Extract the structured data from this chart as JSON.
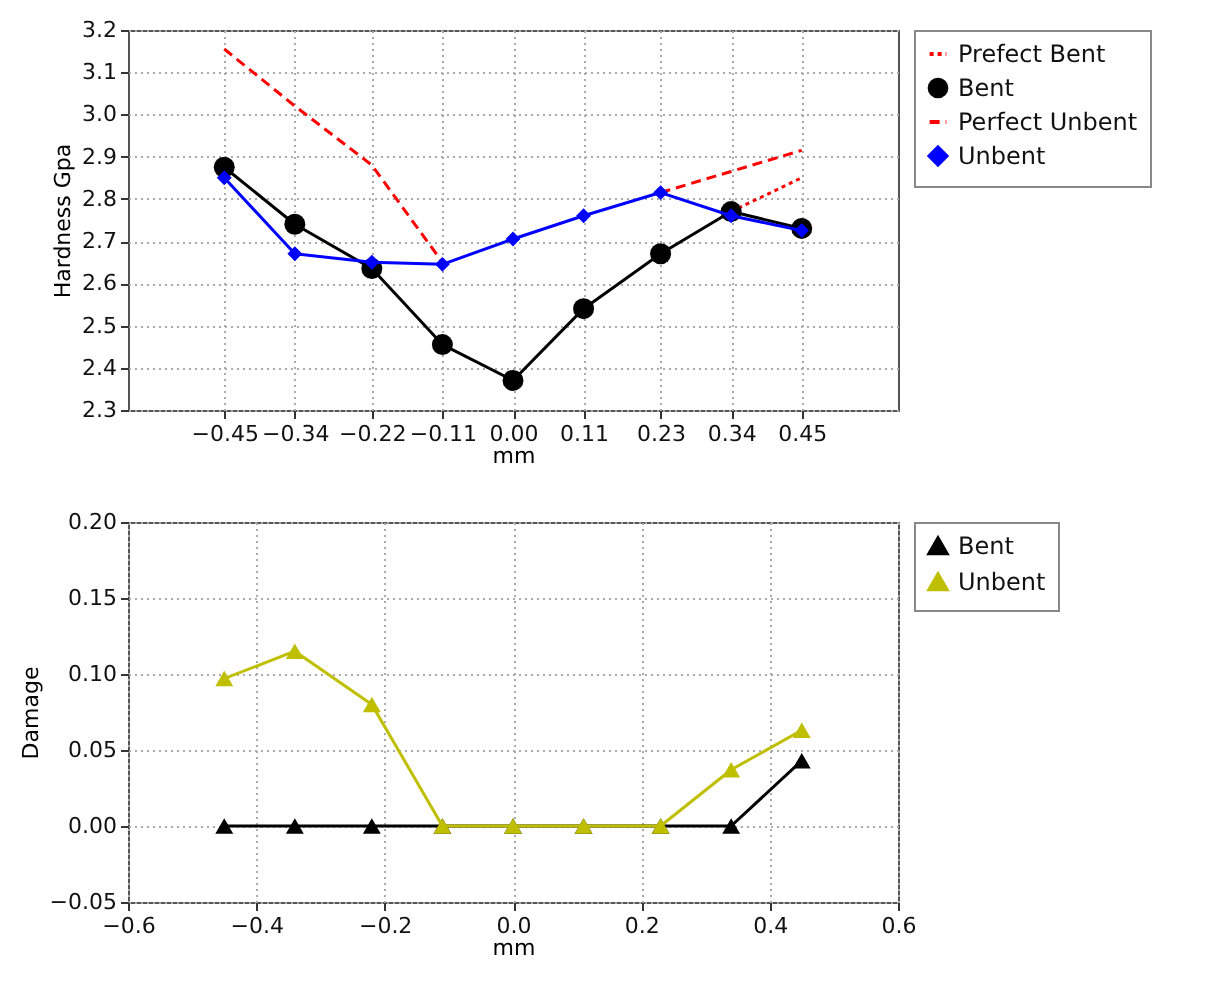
{
  "chart_data": [
    {
      "type": "line",
      "xlabel": "mm",
      "ylabel": "Hardness Gpa",
      "x": [
        -0.45,
        -0.34,
        -0.22,
        -0.11,
        0.0,
        0.11,
        0.23,
        0.34,
        0.45
      ],
      "xlim": [
        -0.6,
        0.6
      ],
      "xticks": [
        {
          "value": -0.45,
          "label": "−0.45"
        },
        {
          "value": -0.34,
          "label": "−0.34"
        },
        {
          "value": -0.22,
          "label": "−0.22"
        },
        {
          "value": -0.11,
          "label": "−0.11"
        },
        {
          "value": 0.0,
          "label": "0.00"
        },
        {
          "value": 0.11,
          "label": "0.11"
        },
        {
          "value": 0.23,
          "label": "0.23"
        },
        {
          "value": 0.34,
          "label": "0.34"
        },
        {
          "value": 0.45,
          "label": "0.45"
        }
      ],
      "ylim": [
        2.3,
        3.2
      ],
      "yticks": [
        {
          "value": 2.3,
          "label": "2.3"
        },
        {
          "value": 2.4,
          "label": "2.4"
        },
        {
          "value": 2.5,
          "label": "2.5"
        },
        {
          "value": 2.6,
          "label": "2.6"
        },
        {
          "value": 2.7,
          "label": "2.7"
        },
        {
          "value": 2.8,
          "label": "2.8"
        },
        {
          "value": 2.9,
          "label": "2.9"
        },
        {
          "value": 3.0,
          "label": "3.0"
        },
        {
          "value": 3.1,
          "label": "3.1"
        },
        {
          "value": 3.2,
          "label": "3.2"
        }
      ],
      "grid": true,
      "legend": "right",
      "series": [
        {
          "name": "Prefect Bent",
          "color": "#ff0000",
          "marker": "none",
          "line_style": "dotted",
          "values": [
            null,
            null,
            null,
            null,
            null,
            null,
            null,
            2.77,
            2.85
          ]
        },
        {
          "name": "Bent",
          "color": "#000000",
          "marker": "circle",
          "line_style": "solid",
          "values": [
            2.875,
            2.74,
            2.635,
            2.455,
            2.37,
            2.54,
            2.67,
            2.77,
            2.73
          ]
        },
        {
          "name": "Perfect Unbent",
          "color": "#ff0000",
          "marker": "none",
          "line_style": "dashed",
          "values": [
            3.155,
            3.02,
            2.88,
            2.65,
            null,
            null,
            2.815,
            2.865,
            2.915
          ]
        },
        {
          "name": "Unbent",
          "color": "#0000ff",
          "marker": "diamond",
          "line_style": "solid",
          "values": [
            2.85,
            2.67,
            2.65,
            2.645,
            2.705,
            2.76,
            2.815,
            2.76,
            2.725
          ]
        }
      ]
    },
    {
      "type": "line",
      "xlabel": "mm",
      "ylabel": "Damage",
      "x": [
        -0.45,
        -0.34,
        -0.22,
        -0.11,
        0.0,
        0.11,
        0.23,
        0.34,
        0.45
      ],
      "xlim": [
        -0.6,
        0.6
      ],
      "xticks": [
        {
          "value": -0.6,
          "label": "−0.6"
        },
        {
          "value": -0.4,
          "label": "−0.4"
        },
        {
          "value": -0.2,
          "label": "−0.2"
        },
        {
          "value": 0.0,
          "label": "0.0"
        },
        {
          "value": 0.2,
          "label": "0.2"
        },
        {
          "value": 0.4,
          "label": "0.4"
        },
        {
          "value": 0.6,
          "label": "0.6"
        }
      ],
      "ylim": [
        -0.05,
        0.2
      ],
      "yticks": [
        {
          "value": -0.05,
          "label": "−0.05"
        },
        {
          "value": 0.0,
          "label": "0.00"
        },
        {
          "value": 0.05,
          "label": "0.05"
        },
        {
          "value": 0.1,
          "label": "0.10"
        },
        {
          "value": 0.15,
          "label": "0.15"
        },
        {
          "value": 0.2,
          "label": "0.20"
        }
      ],
      "grid": true,
      "legend": "right",
      "series": [
        {
          "name": "Bent",
          "color": "#000000",
          "marker": "triangle",
          "line_style": "solid",
          "values": [
            0,
            0,
            0,
            0,
            0,
            0,
            0,
            0,
            0.043
          ]
        },
        {
          "name": "Unbent",
          "color": "#bfbf00",
          "marker": "triangle",
          "line_style": "solid",
          "values": [
            0.097,
            0.115,
            0.08,
            0,
            0,
            0,
            0,
            0.037,
            0.063
          ]
        }
      ]
    }
  ]
}
